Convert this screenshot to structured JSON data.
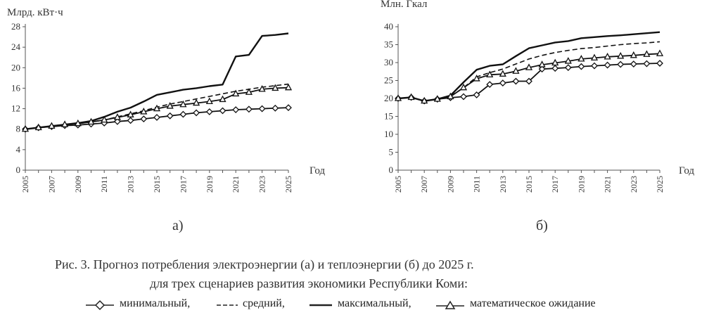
{
  "chart_data": [
    {
      "type": "line",
      "panel_label": "а)",
      "ylabel": "Млрд. кВт·ч",
      "xlabel": "Год",
      "ylim": [
        0,
        28
      ],
      "yticks": [
        0,
        4,
        8,
        12,
        16,
        20,
        24,
        28
      ],
      "x": [
        2005,
        2006,
        2007,
        2008,
        2009,
        2010,
        2011,
        2012,
        2013,
        2014,
        2015,
        2016,
        2017,
        2018,
        2019,
        2020,
        2021,
        2022,
        2023,
        2024,
        2025
      ],
      "xtick_labels": [
        "2005",
        "2007",
        "2009",
        "2011",
        "2013",
        "2015",
        "2017",
        "2019",
        "2021",
        "2023",
        "2025"
      ],
      "series": [
        {
          "key": "min",
          "marker": "diamond",
          "dash": "solid",
          "values": [
            8,
            8.3,
            8.5,
            8.7,
            8.8,
            9.0,
            9.2,
            9.5,
            9.7,
            10.0,
            10.3,
            10.6,
            10.9,
            11.2,
            11.4,
            11.6,
            11.8,
            11.9,
            12.0,
            12.1,
            12.2
          ]
        },
        {
          "key": "avg",
          "marker": "none",
          "dash": "dashed",
          "values": [
            8,
            8.3,
            8.6,
            8.9,
            9.1,
            9.4,
            9.8,
            10.4,
            11.0,
            11.6,
            12.3,
            12.9,
            13.4,
            13.9,
            14.4,
            14.9,
            15.4,
            15.8,
            16.2,
            16.5,
            16.8
          ]
        },
        {
          "key": "max",
          "marker": "none",
          "dash": "solid",
          "values": [
            8,
            8.3,
            8.6,
            8.9,
            9.2,
            9.6,
            10.4,
            11.4,
            12.2,
            13.4,
            14.7,
            15.2,
            15.7,
            16.0,
            16.4,
            16.7,
            22.2,
            22.5,
            26.2,
            26.4,
            26.7
          ]
        },
        {
          "key": "exp",
          "marker": "triangle",
          "dash": "solid",
          "values": [
            8,
            8.3,
            8.6,
            8.9,
            9.1,
            9.4,
            9.8,
            10.3,
            10.8,
            11.4,
            12.0,
            12.5,
            12.8,
            13.1,
            13.4,
            13.8,
            14.9,
            15.2,
            15.8,
            16.0,
            16.1
          ]
        }
      ]
    },
    {
      "type": "line",
      "panel_label": "б)",
      "ylabel": "Млн. Гкал",
      "xlabel": "Год",
      "ylim": [
        0,
        40
      ],
      "yticks": [
        0,
        5,
        10,
        15,
        20,
        25,
        30,
        35,
        40
      ],
      "x": [
        2005,
        2006,
        2007,
        2008,
        2009,
        2010,
        2011,
        2012,
        2013,
        2014,
        2015,
        2016,
        2017,
        2018,
        2019,
        2020,
        2021,
        2022,
        2023,
        2024,
        2025
      ],
      "xtick_labels": [
        "2005",
        "2007",
        "2009",
        "2011",
        "2013",
        "2015",
        "2017",
        "2019",
        "2021",
        "2023",
        "2025"
      ],
      "series": [
        {
          "key": "min",
          "marker": "diamond",
          "dash": "solid",
          "values": [
            20,
            20.3,
            19.3,
            19.8,
            20.2,
            20.5,
            21.0,
            23.9,
            24.3,
            24.8,
            24.8,
            28.2,
            28.4,
            28.6,
            28.9,
            29.1,
            29.3,
            29.5,
            29.6,
            29.7,
            29.8
          ]
        },
        {
          "key": "avg",
          "marker": "none",
          "dash": "dashed",
          "values": [
            20,
            20.3,
            19.3,
            19.8,
            20.6,
            23.0,
            26.0,
            27.2,
            28.2,
            29.6,
            31.0,
            32.0,
            32.8,
            33.4,
            33.9,
            34.2,
            34.6,
            35.0,
            35.3,
            35.5,
            35.8
          ]
        },
        {
          "key": "max",
          "marker": "none",
          "dash": "solid",
          "values": [
            20,
            20.3,
            19.3,
            19.8,
            20.8,
            24.5,
            28.0,
            29.1,
            29.5,
            31.8,
            34.0,
            34.8,
            35.6,
            36.0,
            36.8,
            37.1,
            37.4,
            37.6,
            37.9,
            38.2,
            38.5
          ]
        },
        {
          "key": "exp",
          "marker": "triangle",
          "dash": "solid",
          "values": [
            20,
            20.3,
            19.3,
            19.8,
            20.5,
            23.0,
            25.5,
            26.6,
            26.8,
            27.6,
            28.6,
            29.4,
            29.9,
            30.4,
            31.0,
            31.3,
            31.6,
            31.8,
            32.0,
            32.3,
            32.5
          ]
        }
      ]
    }
  ],
  "caption": {
    "line1": "Рис. 3. Прогноз потребления электроэнергии (а) и теплоэнергии (б) до 2025 г.",
    "line2": "для трех сценариев развития экономики Республики Коми:"
  },
  "legend": {
    "min_label": "минимальный,",
    "avg_label": "средний,",
    "max_label": "максимальный,",
    "exp_label": "математическое ожидание"
  }
}
